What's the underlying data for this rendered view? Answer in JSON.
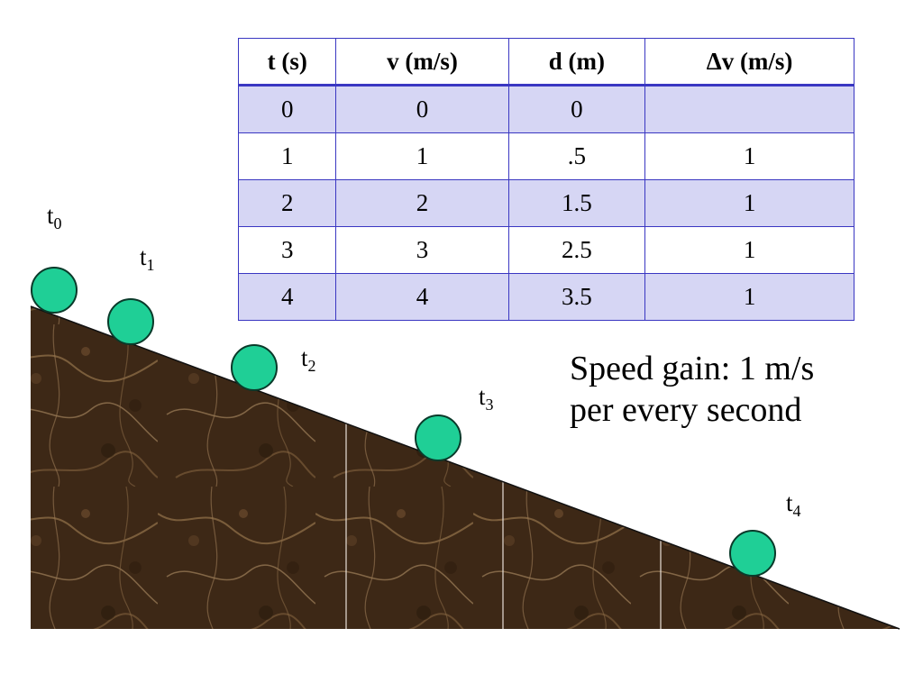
{
  "table": {
    "headers": [
      "t (s)",
      "v (m/s)",
      "d (m)",
      "Δv (m/s)"
    ],
    "rows": [
      [
        "0",
        "0",
        "0",
        ""
      ],
      [
        "1",
        "1",
        ".5",
        "1"
      ],
      [
        "2",
        "2",
        "1.5",
        "1"
      ],
      [
        "3",
        "3",
        "2.5",
        "1"
      ],
      [
        "4",
        "4",
        "3.5",
        "1"
      ]
    ]
  },
  "caption": {
    "line1": "Speed gain: 1 m/s",
    "line2": "per every second"
  },
  "time_labels": [
    {
      "base": "t",
      "sub": "0"
    },
    {
      "base": "t",
      "sub": "1"
    },
    {
      "base": "t",
      "sub": "2"
    },
    {
      "base": "t",
      "sub": "3"
    },
    {
      "base": "t",
      "sub": "4"
    }
  ],
  "colors": {
    "ball_fill": "#1fcf96",
    "ball_stroke": "#0a3a2a",
    "slope_dark": "#3a2614",
    "slope_mid": "#5a3d24",
    "slope_vein": "#9b7a55",
    "table_border": "#3a37c2",
    "table_stripe": "#d6d6f4"
  }
}
